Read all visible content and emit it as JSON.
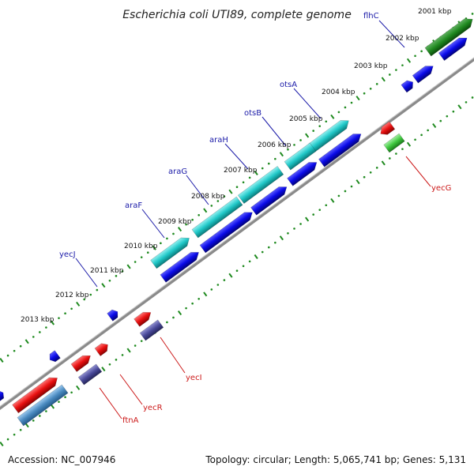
{
  "title": "Escherichia coli UTI89, complete genome",
  "footer": {
    "accession": "Accession: NC_007946",
    "summary": "Topology: circular; Length: 5,065,741 bp; Genes: 5,131"
  },
  "colors": {
    "backbone": "#8a8a8a",
    "tick_green": "#1f8a1f",
    "label_blue": "#1a1aa8",
    "label_red": "#cc1a1a",
    "cds_blue": "#0a0ae8",
    "rrna_cyan": "#20c8c8",
    "cds_red": "#e81010",
    "cds_purple": "#4a4a9a",
    "cds_steel": "#4a8ac0",
    "cds_green": "#40c840",
    "cds_darkgreen": "#208a20"
  },
  "kbp_markers": [
    "2001 kbp",
    "2002 kbp",
    "2003 kbp",
    "2004 kbp",
    "2005 kbp",
    "2006 kbp",
    "2007 kbp",
    "2008 kbp",
    "2009 kbp",
    "2010 kbp",
    "2011 kbp",
    "2012 kbp",
    "2013 kbp"
  ],
  "gene_labels_top": [
    "flhC",
    "otsA",
    "otsB",
    "araH",
    "araG",
    "araF",
    "yecJ"
  ],
  "gene_labels_bottom": [
    "yecG",
    "yecI",
    "yecR",
    "ftnA"
  ]
}
